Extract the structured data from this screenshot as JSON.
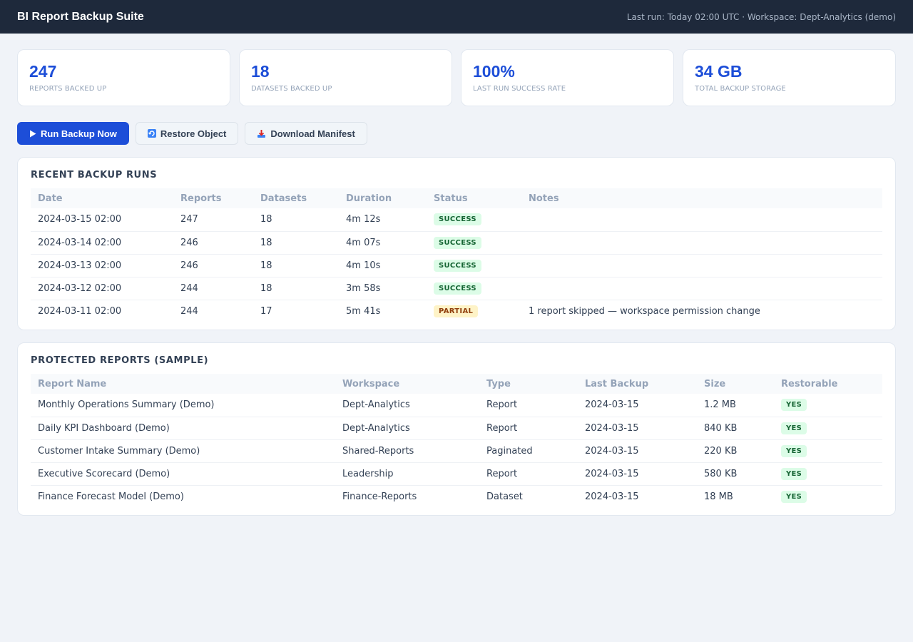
{
  "header": {
    "title": "BI Report Backup Suite",
    "run_info": "Last run: Today 02:00 UTC · Workspace: Dept-Analytics (demo)"
  },
  "stats": [
    {
      "value": "247",
      "label": "Reports backed up"
    },
    {
      "value": "18",
      "label": "Datasets backed up"
    },
    {
      "value": "100%",
      "label": "Last run success rate"
    },
    {
      "value": "34 GB",
      "label": "Total backup storage"
    }
  ],
  "actions": {
    "run_backup": "Run Backup Now",
    "restore_object": "Restore Object",
    "download_manifest": "Download Manifest"
  },
  "icons": {
    "run_backup": "play-icon",
    "restore_object": "restore-icon",
    "download_manifest": "download-icon"
  },
  "recent_runs": {
    "title": "Recent Backup Runs",
    "columns": [
      "Date",
      "Reports",
      "Datasets",
      "Duration",
      "Status",
      "Notes"
    ],
    "rows": [
      [
        "2024-03-15 02:00",
        "247",
        "18",
        "4m 12s",
        "SUCCESS",
        ""
      ],
      [
        "2024-03-14 02:00",
        "246",
        "18",
        "4m 07s",
        "SUCCESS",
        ""
      ],
      [
        "2024-03-13 02:00",
        "246",
        "18",
        "4m 10s",
        "SUCCESS",
        ""
      ],
      [
        "2024-03-12 02:00",
        "244",
        "18",
        "3m 58s",
        "SUCCESS",
        ""
      ],
      [
        "2024-03-11 02:00",
        "244",
        "17",
        "5m 41s",
        "PARTIAL",
        "1 report skipped — workspace permission change"
      ]
    ]
  },
  "protected_reports": {
    "title": "Protected Reports (Sample)",
    "columns": [
      "Report Name",
      "Workspace",
      "Type",
      "Last Backup",
      "Size",
      "Restorable"
    ],
    "rows": [
      [
        "Monthly Operations Summary (Demo)",
        "Dept-Analytics",
        "Report",
        "2024-03-15",
        "1.2 MB",
        "YES"
      ],
      [
        "Daily KPI Dashboard (Demo)",
        "Dept-Analytics",
        "Report",
        "2024-03-15",
        "840 KB",
        "YES"
      ],
      [
        "Customer Intake Summary (Demo)",
        "Shared-Reports",
        "Paginated",
        "2024-03-15",
        "220 KB",
        "YES"
      ],
      [
        "Executive Scorecard (Demo)",
        "Leadership",
        "Report",
        "2024-03-15",
        "580 KB",
        "YES"
      ],
      [
        "Finance Forecast Model (Demo)",
        "Finance-Reports",
        "Dataset",
        "2024-03-15",
        "18 MB",
        "YES"
      ]
    ]
  },
  "colors": {
    "topbar": "#1e293b",
    "accent": "#1d4ed8",
    "success_bg": "#dcfce7",
    "success_text": "#166534",
    "partial_bg": "#fef3c7",
    "partial_text": "#92400e"
  }
}
